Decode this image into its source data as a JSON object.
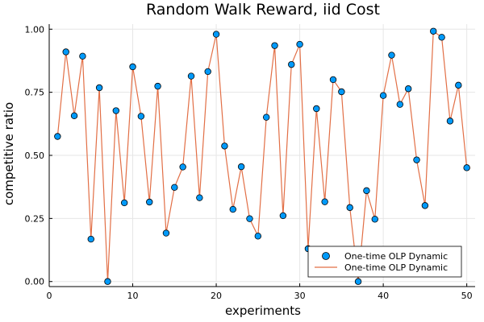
{
  "chart_data": {
    "type": "scatter",
    "title": "Random Walk Reward, iid Cost",
    "xlabel": "experiments",
    "ylabel": "competitive ratio",
    "xlim": [
      0,
      51
    ],
    "ylim": [
      -0.02,
      1.02
    ],
    "xticks": [
      0,
      10,
      20,
      30,
      40,
      50
    ],
    "xtick_labels": [
      "0",
      "10",
      "20",
      "30",
      "40",
      "50"
    ],
    "yticks": [
      0,
      0.25,
      0.5,
      0.75,
      1.0
    ],
    "ytick_labels": [
      "0.00",
      "0.25",
      "0.50",
      "0.75",
      "1.00"
    ],
    "grid": true,
    "legend_position": "bottom-right",
    "x": [
      1,
      2,
      3,
      4,
      5,
      6,
      7,
      8,
      9,
      10,
      11,
      12,
      13,
      14,
      15,
      16,
      17,
      18,
      19,
      20,
      21,
      22,
      23,
      24,
      25,
      26,
      27,
      28,
      29,
      30,
      31,
      32,
      33,
      34,
      35,
      36,
      37,
      38,
      39,
      40,
      41,
      42,
      43,
      44,
      45,
      46,
      47,
      48,
      49,
      50
    ],
    "series": [
      {
        "name": "One-time OLP Dynamic",
        "mark": "scatter",
        "color": "#009AFA",
        "values": [
          0.575,
          0.91,
          0.657,
          0.893,
          0.168,
          0.768,
          0.0,
          0.677,
          0.312,
          0.851,
          0.655,
          0.315,
          0.774,
          0.192,
          0.373,
          0.454,
          0.814,
          0.332,
          0.832,
          0.98,
          0.537,
          0.286,
          0.455,
          0.249,
          0.18,
          0.651,
          0.935,
          0.261,
          0.86,
          0.94,
          0.13,
          0.685,
          0.316,
          0.8,
          0.752,
          0.293,
          0.0,
          0.36,
          0.247,
          0.737,
          0.897,
          0.702,
          0.764,
          0.482,
          0.301,
          0.992,
          0.968,
          0.636,
          0.778,
          0.451
        ]
      },
      {
        "name": "One-time OLP Dynamic",
        "mark": "line",
        "color": "#E26F46",
        "values": [
          0.575,
          0.91,
          0.657,
          0.893,
          0.168,
          0.768,
          0.0,
          0.677,
          0.312,
          0.851,
          0.655,
          0.315,
          0.774,
          0.192,
          0.373,
          0.454,
          0.814,
          0.332,
          0.832,
          0.98,
          0.537,
          0.286,
          0.455,
          0.249,
          0.18,
          0.651,
          0.935,
          0.261,
          0.86,
          0.94,
          0.13,
          0.685,
          0.316,
          0.8,
          0.752,
          0.293,
          0.0,
          0.36,
          0.247,
          0.737,
          0.897,
          0.702,
          0.764,
          0.482,
          0.301,
          0.992,
          0.968,
          0.636,
          0.778,
          0.451
        ]
      }
    ]
  }
}
